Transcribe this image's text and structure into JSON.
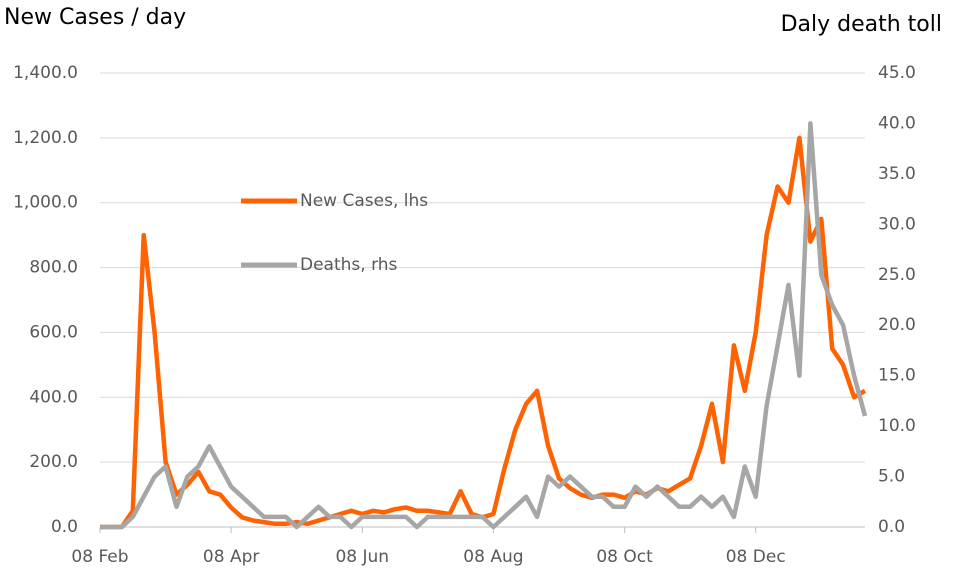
{
  "chart_data": {
    "type": "line",
    "title": "New Cases / day",
    "y2_title": "Daly death toll",
    "categories": [
      "08 Feb",
      null,
      null,
      null,
      null,
      null,
      null,
      null,
      null,
      null,
      null,
      null,
      "08 Apr",
      null,
      null,
      null,
      null,
      null,
      null,
      null,
      null,
      null,
      null,
      null,
      "08 Jun",
      null,
      null,
      null,
      null,
      null,
      null,
      null,
      null,
      null,
      null,
      null,
      "08 Aug",
      null,
      null,
      null,
      null,
      null,
      null,
      null,
      null,
      null,
      null,
      null,
      "08 Oct",
      null,
      null,
      null,
      null,
      null,
      null,
      null,
      null,
      null,
      null,
      null,
      "08 Dec",
      null,
      null,
      null,
      null,
      null,
      null,
      null,
      null,
      null,
      null
    ],
    "series": [
      {
        "name": "New Cases, lhs",
        "color": "#ff6200",
        "axis": "y",
        "values": [
          0,
          0,
          0,
          50,
          900,
          600,
          200,
          100,
          130,
          170,
          110,
          100,
          60,
          30,
          20,
          15,
          10,
          10,
          15,
          10,
          20,
          30,
          40,
          50,
          40,
          50,
          45,
          55,
          60,
          50,
          50,
          45,
          40,
          110,
          40,
          30,
          40,
          180,
          300,
          380,
          420,
          250,
          150,
          120,
          100,
          90,
          100,
          100,
          90,
          110,
          100,
          120,
          110,
          130,
          150,
          250,
          380,
          200,
          560,
          420,
          600,
          900,
          1050,
          1000,
          1200,
          880,
          950,
          550,
          500,
          400,
          420
        ]
      },
      {
        "name": "Deaths, rhs",
        "color": "#a6a6a6",
        "axis": "y2",
        "values": [
          0,
          0,
          0,
          1,
          3,
          5,
          6,
          2,
          5,
          6,
          8,
          6,
          4,
          3,
          2,
          1,
          1,
          1,
          0,
          1,
          2,
          1,
          1,
          0,
          1,
          1,
          1,
          1,
          1,
          0,
          1,
          1,
          1,
          1,
          1,
          1,
          0,
          1,
          2,
          3,
          1,
          5,
          4,
          5,
          4,
          3,
          3,
          2,
          2,
          4,
          3,
          4,
          3,
          2,
          2,
          3,
          2,
          3,
          1,
          6,
          3,
          12,
          18,
          24,
          15,
          40,
          25,
          22,
          20,
          15,
          11
        ]
      }
    ],
    "ylim": [
      0,
      1400
    ],
    "yticks": [
      {
        "value": 0,
        "label": "0.0"
      },
      {
        "value": 200,
        "label": "200.0"
      },
      {
        "value": 400,
        "label": "400.0"
      },
      {
        "value": 600,
        "label": "600.0"
      },
      {
        "value": 800,
        "label": "800.0"
      },
      {
        "value": 1000,
        "label": "1,000.0"
      },
      {
        "value": 1200,
        "label": "1,200.0"
      },
      {
        "value": 1400,
        "label": "1,400.0"
      }
    ],
    "y2lim": [
      0,
      45
    ],
    "y2ticks": [
      {
        "value": 0,
        "label": "0.0"
      },
      {
        "value": 5,
        "label": "5.0"
      },
      {
        "value": 10,
        "label": "10.0"
      },
      {
        "value": 15,
        "label": "15.0"
      },
      {
        "value": 20,
        "label": "20.0"
      },
      {
        "value": 25,
        "label": "25.0"
      },
      {
        "value": 30,
        "label": "30.0"
      },
      {
        "value": 35,
        "label": "35.0"
      },
      {
        "value": 40,
        "label": "40.0"
      },
      {
        "value": 45,
        "label": "45.0"
      }
    ],
    "grid": true
  }
}
